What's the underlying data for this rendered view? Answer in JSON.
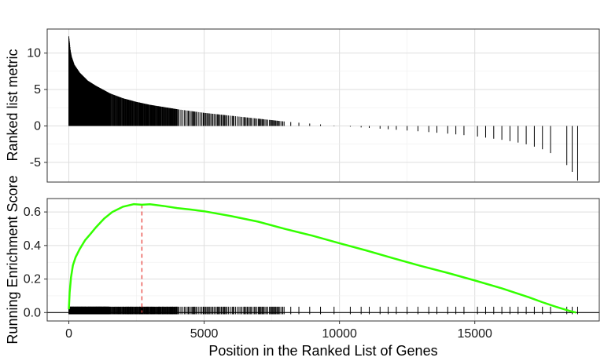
{
  "chart_data": [
    {
      "type": "bar",
      "title": "",
      "xlabel": "",
      "ylabel": "Ranked list metric",
      "xlim": [
        -800,
        19600
      ],
      "ylim": [
        -7.7,
        13.3
      ],
      "y_ticks": [
        -5,
        0,
        5,
        10
      ],
      "grid": true,
      "metric_curve": {
        "x": [
          0,
          50,
          100,
          200,
          400,
          700,
          1000,
          1500,
          2000,
          2500,
          3000,
          4000,
          5000,
          6000,
          7000,
          8000,
          9000,
          10000,
          11000,
          12000,
          13000,
          14000,
          15000,
          16000,
          16500,
          17000,
          17500,
          17900,
          18300,
          18600,
          18800
        ],
        "y": [
          12.3,
          10.5,
          9.5,
          8.4,
          7.3,
          6.2,
          5.5,
          4.5,
          3.8,
          3.3,
          2.9,
          2.3,
          1.8,
          1.4,
          1.0,
          0.6,
          0.3,
          0.0,
          -0.25,
          -0.5,
          -0.75,
          -1.05,
          -1.4,
          -1.9,
          -2.2,
          -2.6,
          -3.2,
          -3.9,
          -4.9,
          -6.3,
          -7.5
        ]
      }
    },
    {
      "type": "line",
      "title": "",
      "xlabel": "Position in the Ranked List of Genes",
      "ylabel": "Running Enrichment Score",
      "xlim": [
        -800,
        19600
      ],
      "ylim": [
        -0.05,
        0.68
      ],
      "x_ticks": [
        0,
        5000,
        10000,
        15000
      ],
      "y_ticks": [
        0.0,
        0.2,
        0.4,
        0.6
      ],
      "grid": true,
      "series": [
        {
          "name": "",
          "color": "#33ff00",
          "x": [
            0,
            30,
            80,
            150,
            250,
            400,
            600,
            800,
            1000,
            1300,
            1600,
            2000,
            2400,
            2700,
            3000,
            3500,
            4000,
            4500,
            5000,
            6000,
            7000,
            8000,
            9000,
            10000,
            11000,
            12000,
            13000,
            14000,
            15000,
            16000,
            17000,
            17500,
            18000,
            18300,
            18600,
            18750
          ],
          "y": [
            0.02,
            0.12,
            0.21,
            0.28,
            0.33,
            0.38,
            0.43,
            0.47,
            0.51,
            0.56,
            0.6,
            0.63,
            0.645,
            0.645,
            0.645,
            0.635,
            0.625,
            0.615,
            0.605,
            0.575,
            0.54,
            0.5,
            0.46,
            0.415,
            0.37,
            0.325,
            0.28,
            0.235,
            0.19,
            0.145,
            0.09,
            0.06,
            0.035,
            0.02,
            0.005,
            0.0
          ]
        }
      ],
      "peak_line": {
        "x": 2700,
        "color": "#e8413c"
      },
      "zero_line": 0.0,
      "hits_rug": {
        "dense_range": [
          0,
          8000
        ],
        "sparse_x": [
          8200,
          8500,
          8900,
          9300,
          9800,
          10400,
          10800,
          11100,
          11500,
          11800,
          12100,
          12500,
          12900,
          13300,
          13600,
          14000,
          14300,
          14600,
          15100,
          15400,
          15700,
          16000,
          16300,
          16600,
          16900,
          17200,
          17500,
          17800,
          18400,
          18600,
          18800
        ]
      }
    }
  ]
}
